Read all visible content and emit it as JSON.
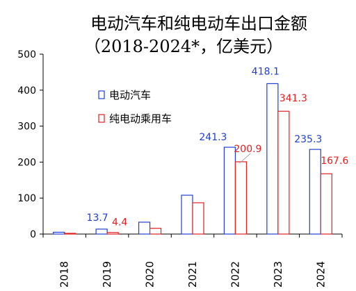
{
  "chart_data": {
    "type": "bar",
    "title_line1": "电动汽车和纯电动车出口金额",
    "title_line2": "（2018-2024*，亿美元）",
    "categories": [
      "2018",
      "2019",
      "2020",
      "2021",
      "2022",
      "2023",
      "2024"
    ],
    "series": [
      {
        "name": "电动汽车",
        "values": [
          5,
          13.7,
          33,
          108,
          241.3,
          418.1,
          235.3
        ],
        "stroke": "#1f3fd0",
        "label_color": "#1f3fd0"
      },
      {
        "name": "纯电动乘用车",
        "values": [
          2,
          4.4,
          16,
          87,
          200.9,
          341.3,
          167.6
        ],
        "stroke": "#e02020",
        "label_color": "#e02020"
      }
    ],
    "data_labels": [
      {
        "series": 0,
        "index": 1,
        "text": "13.7"
      },
      {
        "series": 1,
        "index": 1,
        "text": "4.4"
      },
      {
        "series": 0,
        "index": 4,
        "text": "241.3"
      },
      {
        "series": 1,
        "index": 4,
        "text": "200.9"
      },
      {
        "series": 0,
        "index": 5,
        "text": "418.1"
      },
      {
        "series": 1,
        "index": 5,
        "text": "341.3"
      },
      {
        "series": 0,
        "index": 6,
        "text": "235.3"
      },
      {
        "series": 1,
        "index": 6,
        "text": "167.6"
      }
    ],
    "yticks": [
      "0",
      "100",
      "200",
      "300",
      "400",
      "500"
    ],
    "ylim": [
      0,
      500
    ],
    "grid": false,
    "legend": "upper-left inside plot"
  }
}
